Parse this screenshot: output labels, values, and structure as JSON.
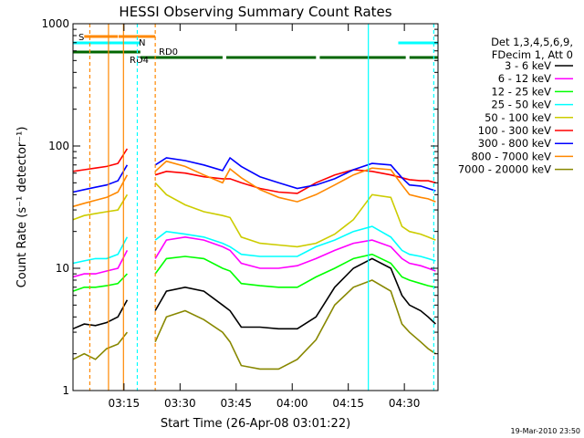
{
  "chart_data": {
    "type": "line",
    "title": "HESSI Observing Summary Count Rates",
    "xlabel": "Start Time (26-Apr-08 03:01:22)",
    "ylabel": "Count Rate (s⁻¹ detector⁻¹)",
    "yscale": "log",
    "ylim": [
      1,
      1000
    ],
    "xlim": [
      "03:01:22",
      "04:39:00"
    ],
    "x_ticks": [
      "03:15",
      "03:30",
      "03:45",
      "04:00",
      "04:15",
      "04:30"
    ],
    "y_ticks": [
      "1",
      "10",
      "100",
      "1000"
    ],
    "grid": false,
    "legend_position": "right",
    "legend_header": [
      "Det 1,3,4,5,6,9,",
      "FDecim 1, Att 0"
    ],
    "x_minutes_from_start": [
      0,
      3,
      6,
      9,
      12,
      14.5,
      22,
      25,
      30,
      35,
      40,
      42,
      45,
      50,
      55,
      60,
      65,
      70,
      75,
      80,
      85,
      88,
      90,
      93,
      95,
      97
    ],
    "gaps_after_minutes": [
      14.5
    ],
    "series": [
      {
        "name": "3 - 6 keV",
        "color": "#000000",
        "values": [
          3.2,
          3.5,
          3.4,
          3.6,
          4.0,
          5.5,
          4.5,
          6.5,
          7.0,
          6.5,
          5.0,
          4.5,
          3.3,
          3.3,
          3.2,
          3.2,
          4.0,
          7.0,
          10,
          12,
          10,
          6,
          5.0,
          4.5,
          4.0,
          3.5
        ]
      },
      {
        "name": "6 - 12 keV",
        "color": "#ff00ff",
        "values": [
          8.5,
          9.0,
          9.0,
          9.5,
          10,
          14,
          12,
          17,
          18,
          17,
          15,
          14,
          11,
          10,
          10,
          10.5,
          12,
          14,
          16,
          17,
          15,
          12,
          11,
          10.5,
          10,
          9.5
        ]
      },
      {
        "name": "12 - 25 keV",
        "color": "#00ff00",
        "values": [
          6.5,
          7.0,
          7.0,
          7.2,
          7.5,
          9,
          9,
          12,
          12.5,
          12,
          10,
          9.5,
          7.5,
          7.2,
          7.0,
          7.0,
          8.5,
          10,
          12,
          13,
          11,
          8.5,
          8.0,
          7.5,
          7.2,
          7.0
        ]
      },
      {
        "name": "25 - 50 keV",
        "color": "#00ffff",
        "values": [
          11,
          11.5,
          12,
          12,
          13,
          18,
          17,
          20,
          19,
          18,
          16,
          15,
          13,
          12.5,
          12.5,
          12.5,
          15,
          17,
          20,
          22,
          18,
          14,
          13,
          12.5,
          12,
          11.5
        ]
      },
      {
        "name": "50 - 100 keV",
        "color": "#cccc00",
        "values": [
          25,
          27,
          28,
          29,
          30,
          40,
          50,
          40,
          33,
          29,
          27,
          26,
          18,
          16,
          15.5,
          15,
          16,
          19,
          25,
          40,
          38,
          22,
          20,
          19,
          18,
          17
        ]
      },
      {
        "name": "100 - 300 keV",
        "color": "#ff0000",
        "values": [
          62,
          64,
          66,
          68,
          72,
          95,
          58,
          62,
          60,
          56,
          54,
          54,
          50,
          45,
          42,
          41,
          50,
          58,
          64,
          62,
          58,
          55,
          53,
          52,
          52,
          50
        ]
      },
      {
        "name": "300 - 800 keV",
        "color": "#0000ff",
        "values": [
          42,
          44,
          46,
          48,
          52,
          70,
          70,
          80,
          76,
          70,
          63,
          80,
          68,
          56,
          50,
          45,
          48,
          54,
          64,
          72,
          70,
          55,
          48,
          47,
          45,
          43
        ]
      },
      {
        "name": "800 - 7000 keV",
        "color": "#ff8800",
        "values": [
          32,
          34,
          36,
          38,
          42,
          58,
          62,
          75,
          68,
          58,
          50,
          65,
          55,
          44,
          38,
          35,
          40,
          48,
          58,
          66,
          64,
          48,
          40,
          38,
          37,
          35
        ]
      },
      {
        "name": "7000 - 20000 keV",
        "color": "#888800",
        "values": [
          1.8,
          2.0,
          1.8,
          2.2,
          2.4,
          3.0,
          2.5,
          4.0,
          4.5,
          3.8,
          3.0,
          2.5,
          1.6,
          1.5,
          1.5,
          1.8,
          2.6,
          5.0,
          7.0,
          8.0,
          6.5,
          3.5,
          3.0,
          2.5,
          2.2,
          2.0
        ]
      }
    ],
    "flag_lines": [
      {
        "label": "S",
        "color": "#ff8800"
      },
      {
        "label": "N",
        "color": "#00ffff"
      },
      {
        "label": "RD4",
        "color": "#006600"
      },
      {
        "label": "RD0",
        "color": "#006600"
      }
    ],
    "footer_stamp": "19-Mar-2010 23:50"
  }
}
